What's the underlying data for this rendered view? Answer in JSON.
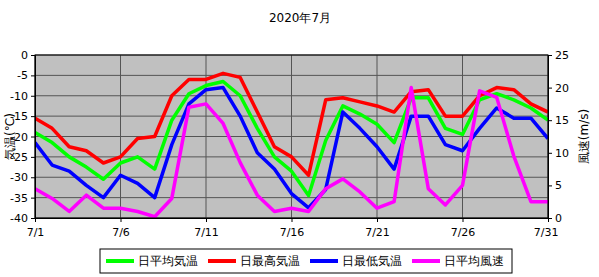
{
  "chart_data": {
    "type": "line",
    "title": "2020年7月",
    "x": [
      1,
      2,
      3,
      4,
      5,
      6,
      7,
      8,
      9,
      10,
      11,
      12,
      13,
      14,
      15,
      16,
      17,
      18,
      19,
      20,
      21,
      22,
      23,
      24,
      25,
      26,
      27,
      28,
      29,
      30,
      31
    ],
    "xlim": [
      1,
      31
    ],
    "xticks": [
      {
        "value": 1,
        "label": "7/1"
      },
      {
        "value": 6,
        "label": "7/6"
      },
      {
        "value": 11,
        "label": "7/11"
      },
      {
        "value": 16,
        "label": "7/16"
      },
      {
        "value": 21,
        "label": "7/21"
      },
      {
        "value": 26,
        "label": "7/26"
      },
      {
        "value": 31,
        "label": "7/31"
      }
    ],
    "y_label": "気温(℃)",
    "ylim": [
      -40,
      0
    ],
    "yticks": [
      -40,
      -35,
      -30,
      -25,
      -20,
      -15,
      -10,
      -5,
      0
    ],
    "y2_label": "風速(m/s)",
    "y2lim": [
      0,
      25
    ],
    "y2ticks": [
      0,
      5,
      10,
      15,
      20,
      25
    ],
    "grid": true,
    "legend": "bottom",
    "series": [
      {
        "name": "日平均気温",
        "color": "#00ff00",
        "values": [
          -19,
          -21.5,
          -25,
          -27.5,
          -30.5,
          -26.5,
          -25,
          -28,
          -16,
          -9.5,
          -7.5,
          -6.5,
          -10,
          -18,
          -25,
          -28.5,
          -34.5,
          -21,
          -12.5,
          -14.5,
          -17,
          -21.5,
          -10.5,
          -10.5,
          -18,
          -19.5,
          -11,
          -9.5,
          -11,
          -13,
          -16
        ]
      },
      {
        "name": "日最高気温",
        "color": "#ff0000",
        "values": [
          -15.5,
          -18,
          -22.5,
          -23.5,
          -26.5,
          -25,
          -20.5,
          -20,
          -10,
          -6,
          -6,
          -4.5,
          -5.5,
          -14,
          -22.5,
          -25,
          -29.5,
          -11,
          -10.5,
          -11.5,
          -12.5,
          -14,
          -9,
          -8.5,
          -15,
          -15,
          -10,
          -8,
          -8.5,
          -12,
          -14
        ]
      },
      {
        "name": "日最低気温",
        "color": "#0000ff",
        "values": [
          -21.5,
          -27,
          -28.5,
          -32,
          -35,
          -29.5,
          -31.5,
          -35,
          -22,
          -12,
          -8.5,
          -8,
          -15,
          -24,
          -28,
          -34,
          -37.5,
          -33,
          -14,
          -18,
          -22.5,
          -28,
          -15,
          -15,
          -22,
          -23.5,
          -18,
          -13,
          -15.5,
          -15.5,
          -20.5
        ]
      },
      {
        "name": "日平均風速",
        "color": "#ff00ff",
        "axis": "y2",
        "values": [
          4.5,
          3,
          1,
          3.5,
          1.5,
          1.5,
          1,
          0.2,
          3,
          17,
          17.5,
          14.5,
          8.5,
          3.5,
          1,
          1.5,
          1,
          4.5,
          6,
          4,
          1.5,
          2.5,
          20,
          4.5,
          2,
          5,
          19.5,
          18.5,
          9.5,
          2.5,
          2.5
        ]
      }
    ]
  }
}
